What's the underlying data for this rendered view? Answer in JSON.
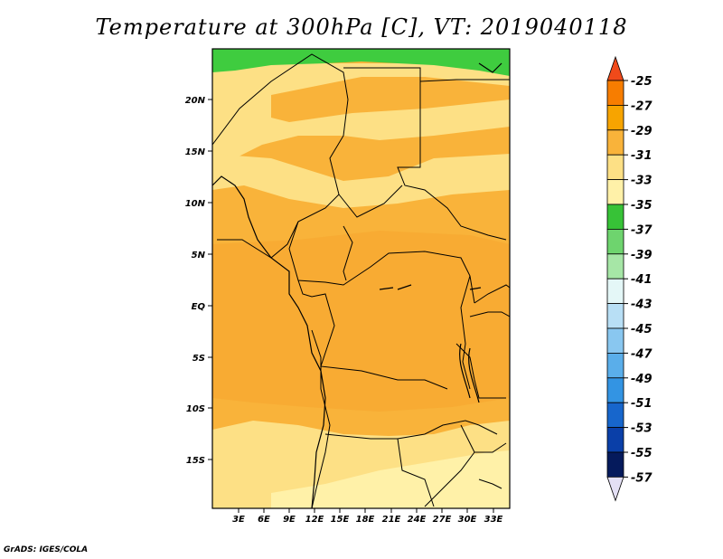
{
  "title": "Temperature at 300hPa [C], VT: 2019040118",
  "credit": "GrADS: IGES/COLA",
  "map": {
    "lon_ticks": [
      "3E",
      "6E",
      "9E",
      "12E",
      "15E",
      "18E",
      "21E",
      "24E",
      "27E",
      "30E",
      "33E"
    ],
    "lat_ticks": [
      "20N",
      "15N",
      "10N",
      "5N",
      "EQ",
      "5S",
      "10S",
      "15S"
    ],
    "fill_colors": {
      "lt_-35_band": "#3fcc3f",
      "-35_-33": "#fff1a8",
      "-33_-31": "#fde085",
      "-31_-29": "#f9b33a",
      "-29_-27": "#f7a42c"
    }
  },
  "colorbar": {
    "labels": [
      "-25",
      "-27",
      "-29",
      "-31",
      "-33",
      "-35",
      "-37",
      "-39",
      "-41",
      "-43",
      "-45",
      "-47",
      "-49",
      "-51",
      "-53",
      "-55",
      "-57"
    ],
    "colors": [
      "#f04a1a",
      "#f77d00",
      "#f7a400",
      "#f9b33a",
      "#fde085",
      "#fff1a8",
      "#37c237",
      "#6ed46e",
      "#a6e6a6",
      "#e4f7f7",
      "#b8dff5",
      "#89c7f0",
      "#5aaeea",
      "#3394e3",
      "#1766cc",
      "#0a3fa8",
      "#051a5c"
    ],
    "top_arrow_color": "#f04a1a",
    "bottom_arrow_color": "#e4e0f5"
  }
}
